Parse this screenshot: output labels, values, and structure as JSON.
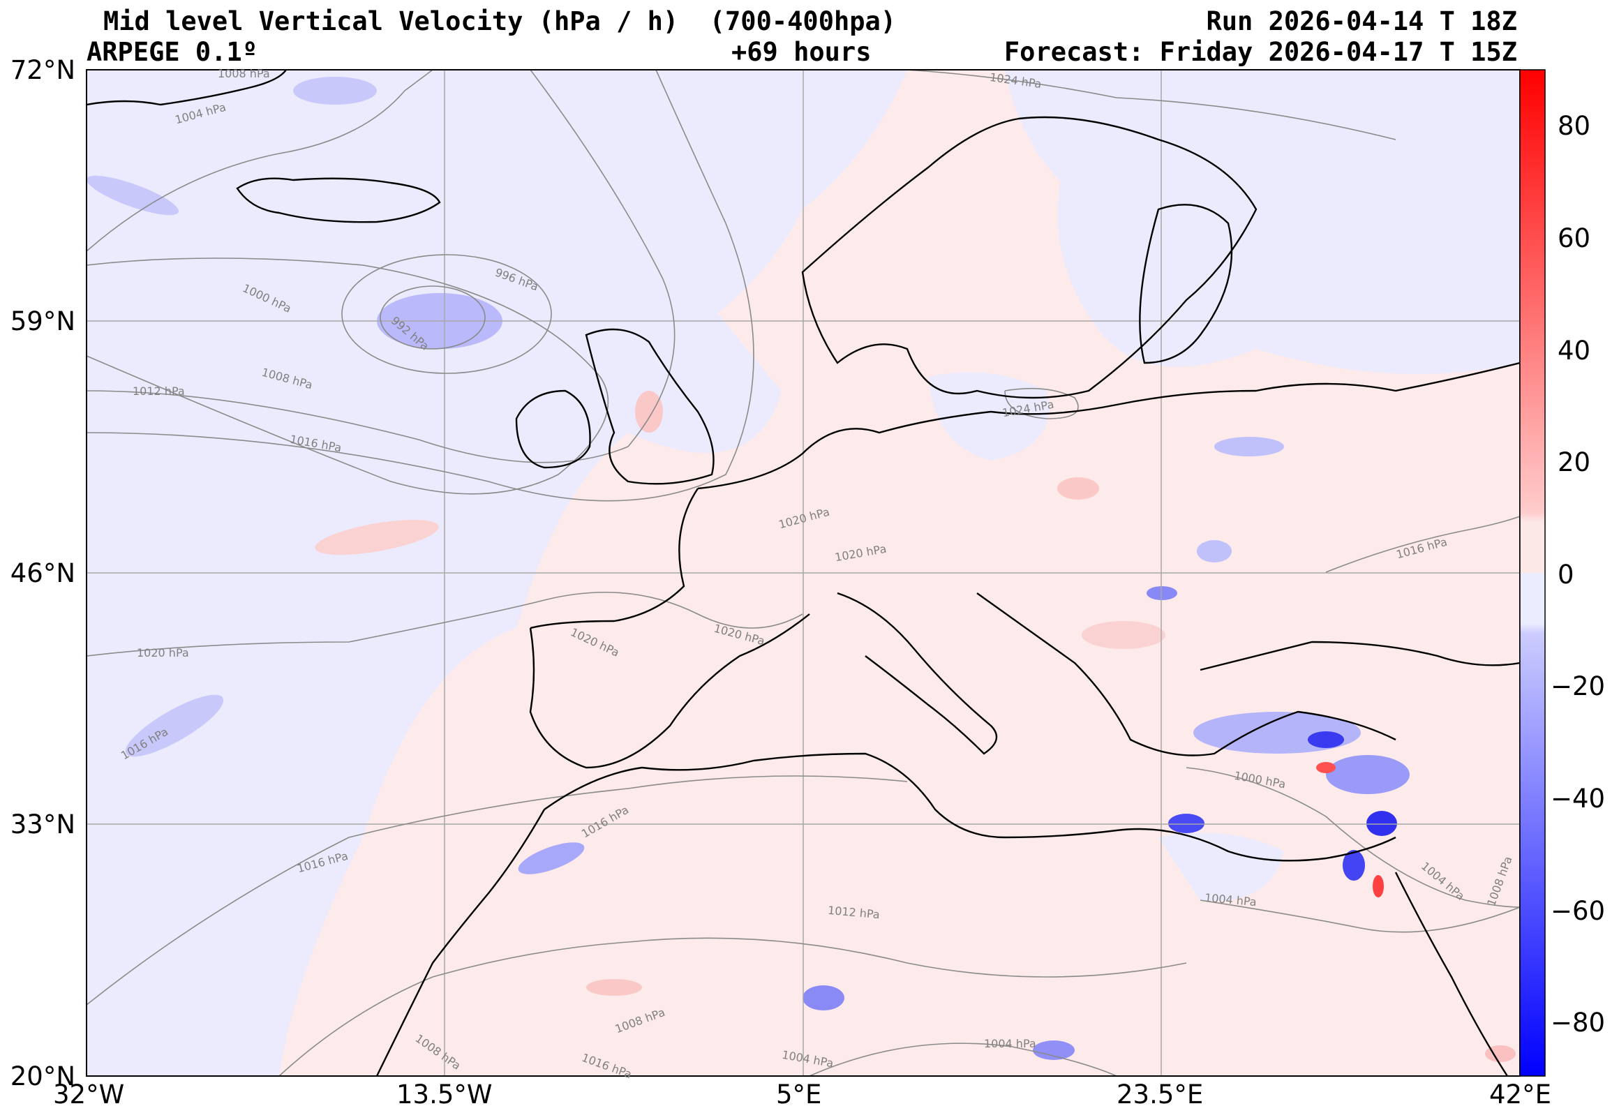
{
  "header": {
    "title": "Mid level Vertical Velocity (hPa / h)  (700-400hpa)",
    "model": "ARPEGE 0.1º",
    "lead": "+69 hours",
    "run": "Run 2026-04-14 T 18Z",
    "forecast": "Forecast: Friday 2026-04-17 T 15Z"
  },
  "axes": {
    "lat_ticks": [
      "72°N",
      "59°N",
      "46°N",
      "33°N",
      "20°N"
    ],
    "lon_ticks": [
      "32°W",
      "13.5°W",
      "5°E",
      "23.5°E",
      "42°E"
    ]
  },
  "colorbar": {
    "tick_labels": [
      "80",
      "60",
      "40",
      "20",
      "0",
      "−20",
      "−40",
      "−60",
      "−80"
    ]
  },
  "isobar_labels": [
    "1008 hPa",
    "1004 hPa",
    "1000 hPa",
    "996 hPa",
    "992 hPa",
    "1008 hPa",
    "1012 hPa",
    "1016 hPa",
    "1020 hPa",
    "1016 hPa",
    "1016 hPa",
    "1020 hPa",
    "1024 hPa",
    "1024 hPa",
    "1020 hPa",
    "1020 hPa",
    "1016 hPa",
    "1020 hPa",
    "1016 hPa",
    "1000 hPa",
    "1004 hPa",
    "1012 hPa",
    "1004 hPa",
    "1008 hPa",
    "1004 hPa",
    "1004 hPa",
    "1008 hPa",
    "1016 hPa",
    "1008 hPa"
  ],
  "colors": {
    "ascent_strong": "#0000ff",
    "ascent_weak": "#e6e8ff",
    "descent_strong": "#ff0000",
    "descent_weak": "#fde8e8",
    "isobar": "#8a8a8a",
    "coast": "#000000",
    "grid": "#a8a8a8"
  }
}
